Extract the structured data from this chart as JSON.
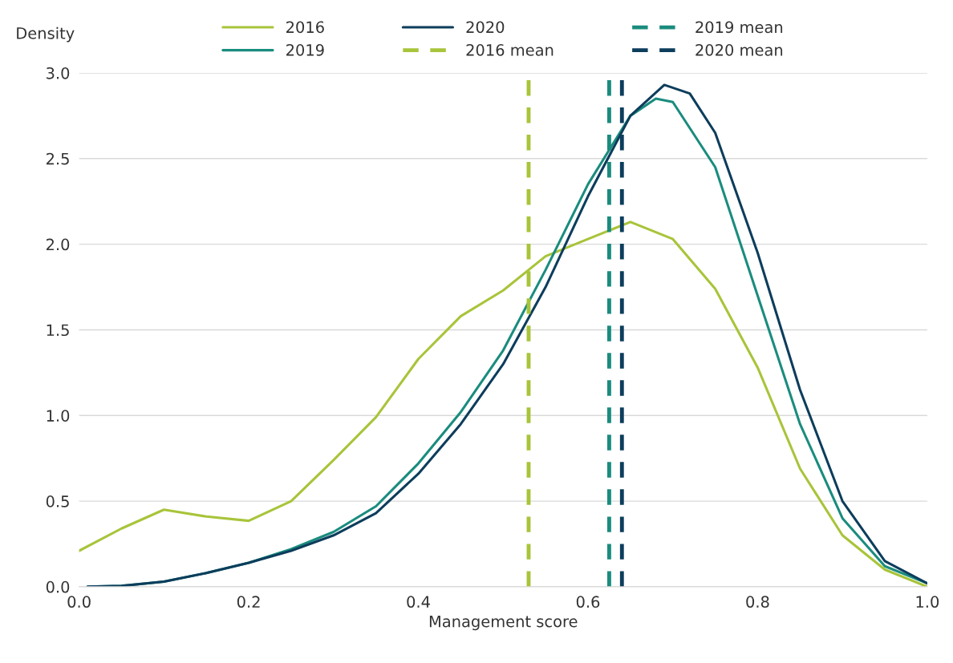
{
  "chart_data": {
    "type": "line",
    "xlabel": "Management score",
    "ylabel": "Density",
    "xlim": [
      0,
      1.0
    ],
    "xticks": [
      {
        "value": 0,
        "label": "0.0"
      },
      0.2,
      0.4,
      0.6,
      0.8,
      {
        "value": 1,
        "label": "1.0"
      }
    ],
    "ylim": [
      0,
      3.0
    ],
    "yticks": [
      {
        "value": 0,
        "label": "0.0"
      },
      0.5,
      {
        "value": 1,
        "label": "1.0"
      },
      1.5,
      {
        "value": 2,
        "label": "2.0"
      },
      2.5,
      {
        "value": 3,
        "label": "3.0"
      }
    ],
    "grid": "y",
    "legend": "top",
    "marker": "none",
    "series": [
      {
        "name": "2016",
        "color": "#a8c43a",
        "line_style": "solid",
        "x": [
          0,
          0.05,
          0.1,
          0.15,
          0.2,
          0.25,
          0.3,
          0.35,
          0.4,
          0.45,
          0.5,
          0.55,
          0.6,
          0.65,
          0.7,
          0.75,
          0.8,
          0.85,
          0.9,
          0.95,
          1.0
        ],
        "values": [
          0.21,
          0.34,
          0.45,
          0.41,
          0.385,
          0.5,
          0.74,
          0.99,
          1.33,
          1.58,
          1.73,
          1.93,
          2.03,
          2.13,
          2.03,
          1.74,
          1.28,
          0.69,
          0.3,
          0.1,
          0.0
        ]
      },
      {
        "name": "2019",
        "color": "#1a8c7e",
        "line_style": "solid",
        "x": [
          0.01,
          0.05,
          0.1,
          0.15,
          0.2,
          0.25,
          0.3,
          0.35,
          0.4,
          0.45,
          0.5,
          0.55,
          0.6,
          0.65,
          0.68,
          0.7,
          0.75,
          0.8,
          0.85,
          0.9,
          0.95,
          1.0
        ],
        "values": [
          0,
          0.005,
          0.03,
          0.08,
          0.14,
          0.22,
          0.32,
          0.47,
          0.72,
          1.02,
          1.38,
          1.85,
          2.35,
          2.75,
          2.85,
          2.83,
          2.45,
          1.7,
          0.95,
          0.4,
          0.12,
          0.02
        ]
      },
      {
        "name": "2020",
        "color": "#0d3d5c",
        "line_style": "solid",
        "x": [
          0.01,
          0.05,
          0.1,
          0.15,
          0.2,
          0.25,
          0.3,
          0.35,
          0.4,
          0.45,
          0.5,
          0.55,
          0.6,
          0.65,
          0.69,
          0.72,
          0.75,
          0.8,
          0.85,
          0.9,
          0.95,
          1.0
        ],
        "values": [
          0,
          0.005,
          0.03,
          0.08,
          0.14,
          0.21,
          0.3,
          0.43,
          0.66,
          0.95,
          1.3,
          1.75,
          2.28,
          2.75,
          2.93,
          2.88,
          2.65,
          1.95,
          1.15,
          0.5,
          0.15,
          0.02
        ]
      },
      {
        "name": "2016 mean",
        "color": "#a8c43a",
        "line_style": "dashed",
        "x": [
          0.53,
          0.53
        ],
        "values": [
          0,
          3.0
        ]
      },
      {
        "name": "2019 mean",
        "color": "#1a8c7e",
        "line_style": "dashed",
        "x": [
          0.625,
          0.625
        ],
        "values": [
          0,
          3.0
        ]
      },
      {
        "name": "2020 mean",
        "color": "#0d3d5c",
        "line_style": "dashed",
        "x": [
          0.64,
          0.64
        ],
        "values": [
          0,
          3.0
        ]
      }
    ]
  }
}
